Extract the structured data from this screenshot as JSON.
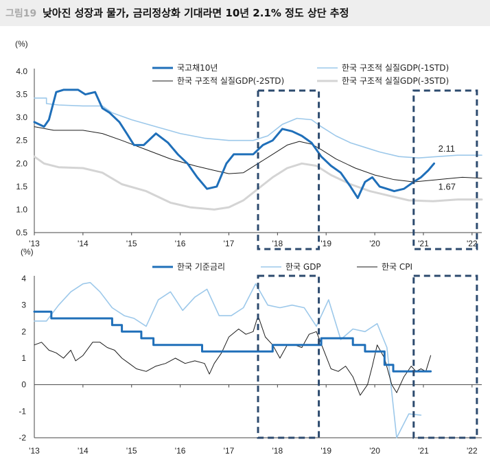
{
  "header": {
    "figure_tag": "그림19",
    "title": "낮아진 성장과 물가, 금리정상화 기대라면 10년 2.1% 정도 상단 추정"
  },
  "colors": {
    "dark_blue": "#1f6fb9",
    "light_blue": "#9cc8ea",
    "black": "#1a1a1a",
    "light_gray": "#d4d4d4",
    "highlight_box": "#2c4a6e"
  },
  "chart_data": [
    {
      "type": "line",
      "unit_label": "(%)",
      "x_tick_labels": [
        "'13",
        "'14",
        "'15",
        "'16",
        "'17",
        "'18",
        "'19",
        "'20",
        "'21",
        "'22"
      ],
      "xlim": [
        2013.0,
        2022.2
      ],
      "ylim": [
        0.5,
        4.0
      ],
      "y_ticks": [
        "4.0",
        "3.5",
        "3.0",
        "2.5",
        "2.0",
        "1.5",
        "1.0",
        "0.5"
      ],
      "annotations": [
        {
          "text": "2.11",
          "x": 2021.25,
          "y": 2.11
        },
        {
          "text": "1.67",
          "x": 2021.25,
          "y": 1.67
        }
      ],
      "highlight_ranges": [
        [
          2017.6,
          2018.85
        ],
        [
          2020.8,
          2022.1
        ]
      ],
      "series": [
        {
          "name": "국고채10년",
          "color_key": "dark_blue",
          "points": [
            [
              2013.0,
              2.9
            ],
            [
              2013.2,
              2.8
            ],
            [
              2013.3,
              2.95
            ],
            [
              2013.45,
              3.55
            ],
            [
              2013.6,
              3.6
            ],
            [
              2013.75,
              3.6
            ],
            [
              2013.9,
              3.6
            ],
            [
              2014.05,
              3.5
            ],
            [
              2014.25,
              3.55
            ],
            [
              2014.4,
              3.2
            ],
            [
              2014.55,
              3.1
            ],
            [
              2014.75,
              2.9
            ],
            [
              2014.9,
              2.65
            ],
            [
              2015.05,
              2.4
            ],
            [
              2015.25,
              2.4
            ],
            [
              2015.5,
              2.65
            ],
            [
              2015.75,
              2.45
            ],
            [
              2015.95,
              2.2
            ],
            [
              2016.15,
              2.0
            ],
            [
              2016.35,
              1.7
            ],
            [
              2016.55,
              1.45
            ],
            [
              2016.75,
              1.5
            ],
            [
              2016.95,
              2.0
            ],
            [
              2017.1,
              2.2
            ],
            [
              2017.3,
              2.2
            ],
            [
              2017.5,
              2.2
            ],
            [
              2017.7,
              2.4
            ],
            [
              2017.9,
              2.5
            ],
            [
              2018.1,
              2.75
            ],
            [
              2018.3,
              2.7
            ],
            [
              2018.5,
              2.6
            ],
            [
              2018.7,
              2.45
            ],
            [
              2018.9,
              2.15
            ],
            [
              2019.1,
              1.95
            ],
            [
              2019.3,
              1.8
            ],
            [
              2019.5,
              1.5
            ],
            [
              2019.65,
              1.25
            ],
            [
              2019.8,
              1.6
            ],
            [
              2019.95,
              1.7
            ],
            [
              2020.1,
              1.5
            ],
            [
              2020.25,
              1.45
            ],
            [
              2020.4,
              1.4
            ],
            [
              2020.6,
              1.45
            ],
            [
              2020.8,
              1.6
            ],
            [
              2020.95,
              1.7
            ],
            [
              2021.1,
              1.85
            ],
            [
              2021.22,
              2.0
            ]
          ]
        },
        {
          "name": "한국 구조적 실질GDP(-1STD)",
          "color_key": "light_blue",
          "points": [
            [
              2013.0,
              3.42
            ],
            [
              2013.25,
              3.42
            ],
            [
              2013.25,
              3.3
            ],
            [
              2013.5,
              3.27
            ],
            [
              2014.0,
              3.25
            ],
            [
              2014.4,
              3.25
            ],
            [
              2014.6,
              3.1
            ],
            [
              2015.0,
              2.95
            ],
            [
              2015.5,
              2.8
            ],
            [
              2016.0,
              2.65
            ],
            [
              2016.5,
              2.55
            ],
            [
              2017.0,
              2.5
            ],
            [
              2017.5,
              2.5
            ],
            [
              2017.8,
              2.6
            ],
            [
              2018.1,
              2.85
            ],
            [
              2018.4,
              2.98
            ],
            [
              2018.7,
              2.95
            ],
            [
              2018.9,
              2.8
            ],
            [
              2019.2,
              2.6
            ],
            [
              2019.5,
              2.45
            ],
            [
              2019.8,
              2.35
            ],
            [
              2020.1,
              2.25
            ],
            [
              2020.5,
              2.15
            ],
            [
              2020.9,
              2.12
            ],
            [
              2021.3,
              2.15
            ],
            [
              2021.7,
              2.18
            ],
            [
              2022.2,
              2.18
            ]
          ]
        },
        {
          "name": "한국 구조적 실질GDP(-2STD)",
          "color_key": "black",
          "points": [
            [
              2013.0,
              2.8
            ],
            [
              2013.4,
              2.72
            ],
            [
              2014.0,
              2.72
            ],
            [
              2014.4,
              2.65
            ],
            [
              2014.8,
              2.5
            ],
            [
              2015.3,
              2.3
            ],
            [
              2015.8,
              2.1
            ],
            [
              2016.3,
              1.95
            ],
            [
              2016.7,
              1.85
            ],
            [
              2017.0,
              1.78
            ],
            [
              2017.3,
              1.8
            ],
            [
              2017.6,
              2.0
            ],
            [
              2017.9,
              2.2
            ],
            [
              2018.2,
              2.4
            ],
            [
              2018.45,
              2.48
            ],
            [
              2018.7,
              2.42
            ],
            [
              2018.9,
              2.3
            ],
            [
              2019.2,
              2.1
            ],
            [
              2019.6,
              1.9
            ],
            [
              2020.0,
              1.75
            ],
            [
              2020.4,
              1.65
            ],
            [
              2020.8,
              1.6
            ],
            [
              2021.3,
              1.65
            ],
            [
              2021.8,
              1.7
            ],
            [
              2022.2,
              1.68
            ]
          ]
        },
        {
          "name": "한국 구조적 실질GDP(-3STD)",
          "color_key": "light_gray",
          "points": [
            [
              2013.0,
              2.15
            ],
            [
              2013.2,
              2.0
            ],
            [
              2013.5,
              1.92
            ],
            [
              2014.0,
              1.9
            ],
            [
              2014.4,
              1.8
            ],
            [
              2014.8,
              1.55
            ],
            [
              2015.3,
              1.4
            ],
            [
              2015.8,
              1.15
            ],
            [
              2016.2,
              1.05
            ],
            [
              2016.7,
              1.0
            ],
            [
              2017.0,
              1.05
            ],
            [
              2017.3,
              1.2
            ],
            [
              2017.6,
              1.45
            ],
            [
              2017.9,
              1.7
            ],
            [
              2018.2,
              1.9
            ],
            [
              2018.5,
              2.0
            ],
            [
              2018.8,
              1.95
            ],
            [
              2019.1,
              1.75
            ],
            [
              2019.5,
              1.55
            ],
            [
              2019.9,
              1.4
            ],
            [
              2020.3,
              1.3
            ],
            [
              2020.7,
              1.2
            ],
            [
              2021.2,
              1.18
            ],
            [
              2021.7,
              1.22
            ],
            [
              2022.2,
              1.22
            ]
          ]
        }
      ]
    },
    {
      "type": "line",
      "unit_label": "(%)",
      "x_tick_labels": [
        "'13",
        "'14",
        "'15",
        "'16",
        "'17",
        "'18",
        "'19",
        "'20",
        "'21",
        "'22"
      ],
      "xlim": [
        2013.0,
        2022.2
      ],
      "ylim": [
        -2,
        4
      ],
      "y_ticks": [
        "4",
        "3",
        "2",
        "1",
        "0",
        "-1",
        "-2"
      ],
      "highlight_ranges": [
        [
          2017.6,
          2018.85
        ],
        [
          2020.8,
          2022.1
        ]
      ],
      "series": [
        {
          "name": "한국 기준금리",
          "color_key": "dark_blue",
          "points": [
            [
              2013.0,
              2.75
            ],
            [
              2013.35,
              2.75
            ],
            [
              2013.35,
              2.5
            ],
            [
              2014.6,
              2.5
            ],
            [
              2014.6,
              2.25
            ],
            [
              2014.8,
              2.25
            ],
            [
              2014.8,
              2.0
            ],
            [
              2015.2,
              2.0
            ],
            [
              2015.2,
              1.75
            ],
            [
              2015.45,
              1.75
            ],
            [
              2015.45,
              1.5
            ],
            [
              2016.45,
              1.5
            ],
            [
              2016.45,
              1.25
            ],
            [
              2017.9,
              1.25
            ],
            [
              2017.9,
              1.5
            ],
            [
              2018.9,
              1.5
            ],
            [
              2018.9,
              1.75
            ],
            [
              2019.55,
              1.75
            ],
            [
              2019.55,
              1.5
            ],
            [
              2019.8,
              1.5
            ],
            [
              2019.8,
              1.25
            ],
            [
              2020.2,
              1.25
            ],
            [
              2020.2,
              0.75
            ],
            [
              2020.38,
              0.75
            ],
            [
              2020.38,
              0.5
            ],
            [
              2021.15,
              0.5
            ]
          ]
        },
        {
          "name": "한국 GDP",
          "color_key": "light_blue",
          "points": [
            [
              2013.0,
              2.4
            ],
            [
              2013.25,
              2.4
            ],
            [
              2013.5,
              3.0
            ],
            [
              2013.75,
              3.5
            ],
            [
              2014.0,
              3.8
            ],
            [
              2014.15,
              3.85
            ],
            [
              2014.35,
              3.5
            ],
            [
              2014.6,
              2.9
            ],
            [
              2014.85,
              2.6
            ],
            [
              2015.05,
              2.5
            ],
            [
              2015.3,
              2.2
            ],
            [
              2015.55,
              3.2
            ],
            [
              2015.8,
              3.5
            ],
            [
              2016.05,
              2.8
            ],
            [
              2016.3,
              3.3
            ],
            [
              2016.55,
              3.6
            ],
            [
              2016.8,
              2.6
            ],
            [
              2017.05,
              2.6
            ],
            [
              2017.3,
              2.9
            ],
            [
              2017.55,
              3.8
            ],
            [
              2017.8,
              3.0
            ],
            [
              2018.05,
              2.9
            ],
            [
              2018.3,
              3.0
            ],
            [
              2018.55,
              2.9
            ],
            [
              2018.8,
              2.2
            ],
            [
              2019.05,
              3.2
            ],
            [
              2019.3,
              1.7
            ],
            [
              2019.55,
              2.1
            ],
            [
              2019.8,
              2.0
            ],
            [
              2020.05,
              2.3
            ],
            [
              2020.25,
              1.4
            ],
            [
              2020.45,
              -2.0
            ],
            [
              2020.7,
              -1.1
            ],
            [
              2020.95,
              -1.15
            ]
          ]
        },
        {
          "name": "한국 CPI",
          "color_key": "black",
          "points": [
            [
              2013.0,
              1.5
            ],
            [
              2013.15,
              1.6
            ],
            [
              2013.3,
              1.3
            ],
            [
              2013.45,
              1.2
            ],
            [
              2013.6,
              1.0
            ],
            [
              2013.75,
              1.3
            ],
            [
              2013.85,
              0.9
            ],
            [
              2014.0,
              1.1
            ],
            [
              2014.2,
              1.6
            ],
            [
              2014.35,
              1.6
            ],
            [
              2014.5,
              1.4
            ],
            [
              2014.65,
              1.3
            ],
            [
              2014.8,
              1.0
            ],
            [
              2014.95,
              0.8
            ],
            [
              2015.1,
              0.6
            ],
            [
              2015.3,
              0.5
            ],
            [
              2015.5,
              0.7
            ],
            [
              2015.7,
              0.8
            ],
            [
              2015.9,
              1.0
            ],
            [
              2016.1,
              0.8
            ],
            [
              2016.3,
              0.9
            ],
            [
              2016.5,
              0.8
            ],
            [
              2016.6,
              0.4
            ],
            [
              2016.7,
              0.8
            ],
            [
              2016.85,
              1.2
            ],
            [
              2017.0,
              1.8
            ],
            [
              2017.2,
              2.1
            ],
            [
              2017.35,
              1.9
            ],
            [
              2017.5,
              2.0
            ],
            [
              2017.6,
              2.6
            ],
            [
              2017.75,
              1.8
            ],
            [
              2017.9,
              1.5
            ],
            [
              2018.05,
              1.0
            ],
            [
              2018.2,
              1.5
            ],
            [
              2018.35,
              1.5
            ],
            [
              2018.5,
              1.4
            ],
            [
              2018.65,
              1.9
            ],
            [
              2018.8,
              2.0
            ],
            [
              2018.95,
              1.3
            ],
            [
              2019.1,
              0.6
            ],
            [
              2019.25,
              0.5
            ],
            [
              2019.4,
              0.7
            ],
            [
              2019.55,
              0.3
            ],
            [
              2019.7,
              -0.4
            ],
            [
              2019.85,
              0.0
            ],
            [
              2019.95,
              0.7
            ],
            [
              2020.05,
              1.5
            ],
            [
              2020.2,
              1.0
            ],
            [
              2020.35,
              0.0
            ],
            [
              2020.45,
              -0.3
            ],
            [
              2020.6,
              0.3
            ],
            [
              2020.75,
              0.7
            ],
            [
              2020.85,
              0.5
            ],
            [
              2020.95,
              0.6
            ],
            [
              2021.05,
              0.5
            ],
            [
              2021.15,
              1.1
            ]
          ]
        }
      ]
    }
  ]
}
